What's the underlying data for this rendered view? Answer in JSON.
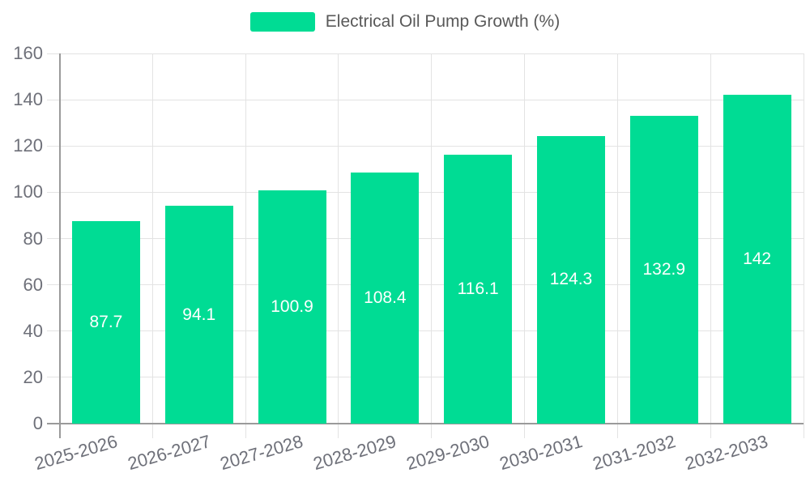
{
  "chart_data": {
    "type": "bar",
    "title": "",
    "legend": "Electrical Oil Pump Growth (%)",
    "legend_position": "top-center",
    "categories": [
      "2025-2026",
      "2026-2027",
      "2027-2028",
      "2028-2029",
      "2029-2030",
      "2030-2031",
      "2031-2032",
      "2032-2033"
    ],
    "values": [
      87.7,
      94.1,
      100.9,
      108.4,
      116.1,
      124.3,
      132.9,
      142
    ],
    "value_labels": [
      "87.7",
      "94.1",
      "100.9",
      "108.4",
      "116.1",
      "124.3",
      "132.9",
      "142"
    ],
    "xlabel": "",
    "ylabel": "",
    "ylim": [
      0,
      160
    ],
    "ytick_interval": 20,
    "yticks": [
      0,
      20,
      40,
      60,
      80,
      100,
      120,
      140,
      160
    ],
    "grid": "on",
    "colors": {
      "bar": "#00DC94",
      "bar_value_text": "#ffffff",
      "axis_line": "#9a9a9a",
      "grid_line": "#e3e3e3",
      "axis_text": "#6E7079",
      "legend_text": "#595959",
      "background": "#ffffff"
    }
  }
}
